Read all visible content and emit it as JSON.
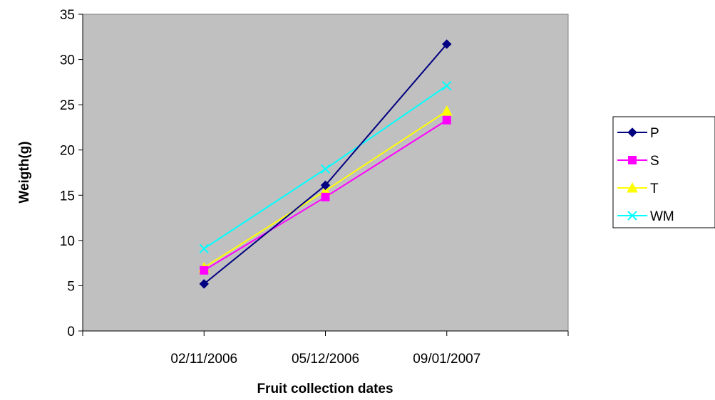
{
  "chart_data": {
    "type": "line",
    "xlabel": "Fruit collection dates",
    "ylabel": "Weigth(g)",
    "categories": [
      "02/11/2006",
      "05/12/2006",
      "09/01/2007"
    ],
    "ylim": [
      0,
      35
    ],
    "yticks": [
      0,
      5,
      10,
      15,
      20,
      25,
      30,
      35
    ],
    "grid": false,
    "plot_background": "#C0C0C0",
    "legend_position": "right",
    "series": [
      {
        "name": "P",
        "values": [
          5.2,
          16.1,
          31.7
        ],
        "color": "#000080",
        "marker": "diamond"
      },
      {
        "name": "S",
        "values": [
          6.7,
          14.8,
          23.3
        ],
        "color": "#FF00FF",
        "marker": "square"
      },
      {
        "name": "T",
        "values": [
          7.0,
          15.5,
          24.3
        ],
        "color": "#FFFF00",
        "marker": "triangle"
      },
      {
        "name": "WM",
        "values": [
          9.1,
          17.9,
          27.1
        ],
        "color": "#00FFFF",
        "marker": "x"
      }
    ]
  }
}
